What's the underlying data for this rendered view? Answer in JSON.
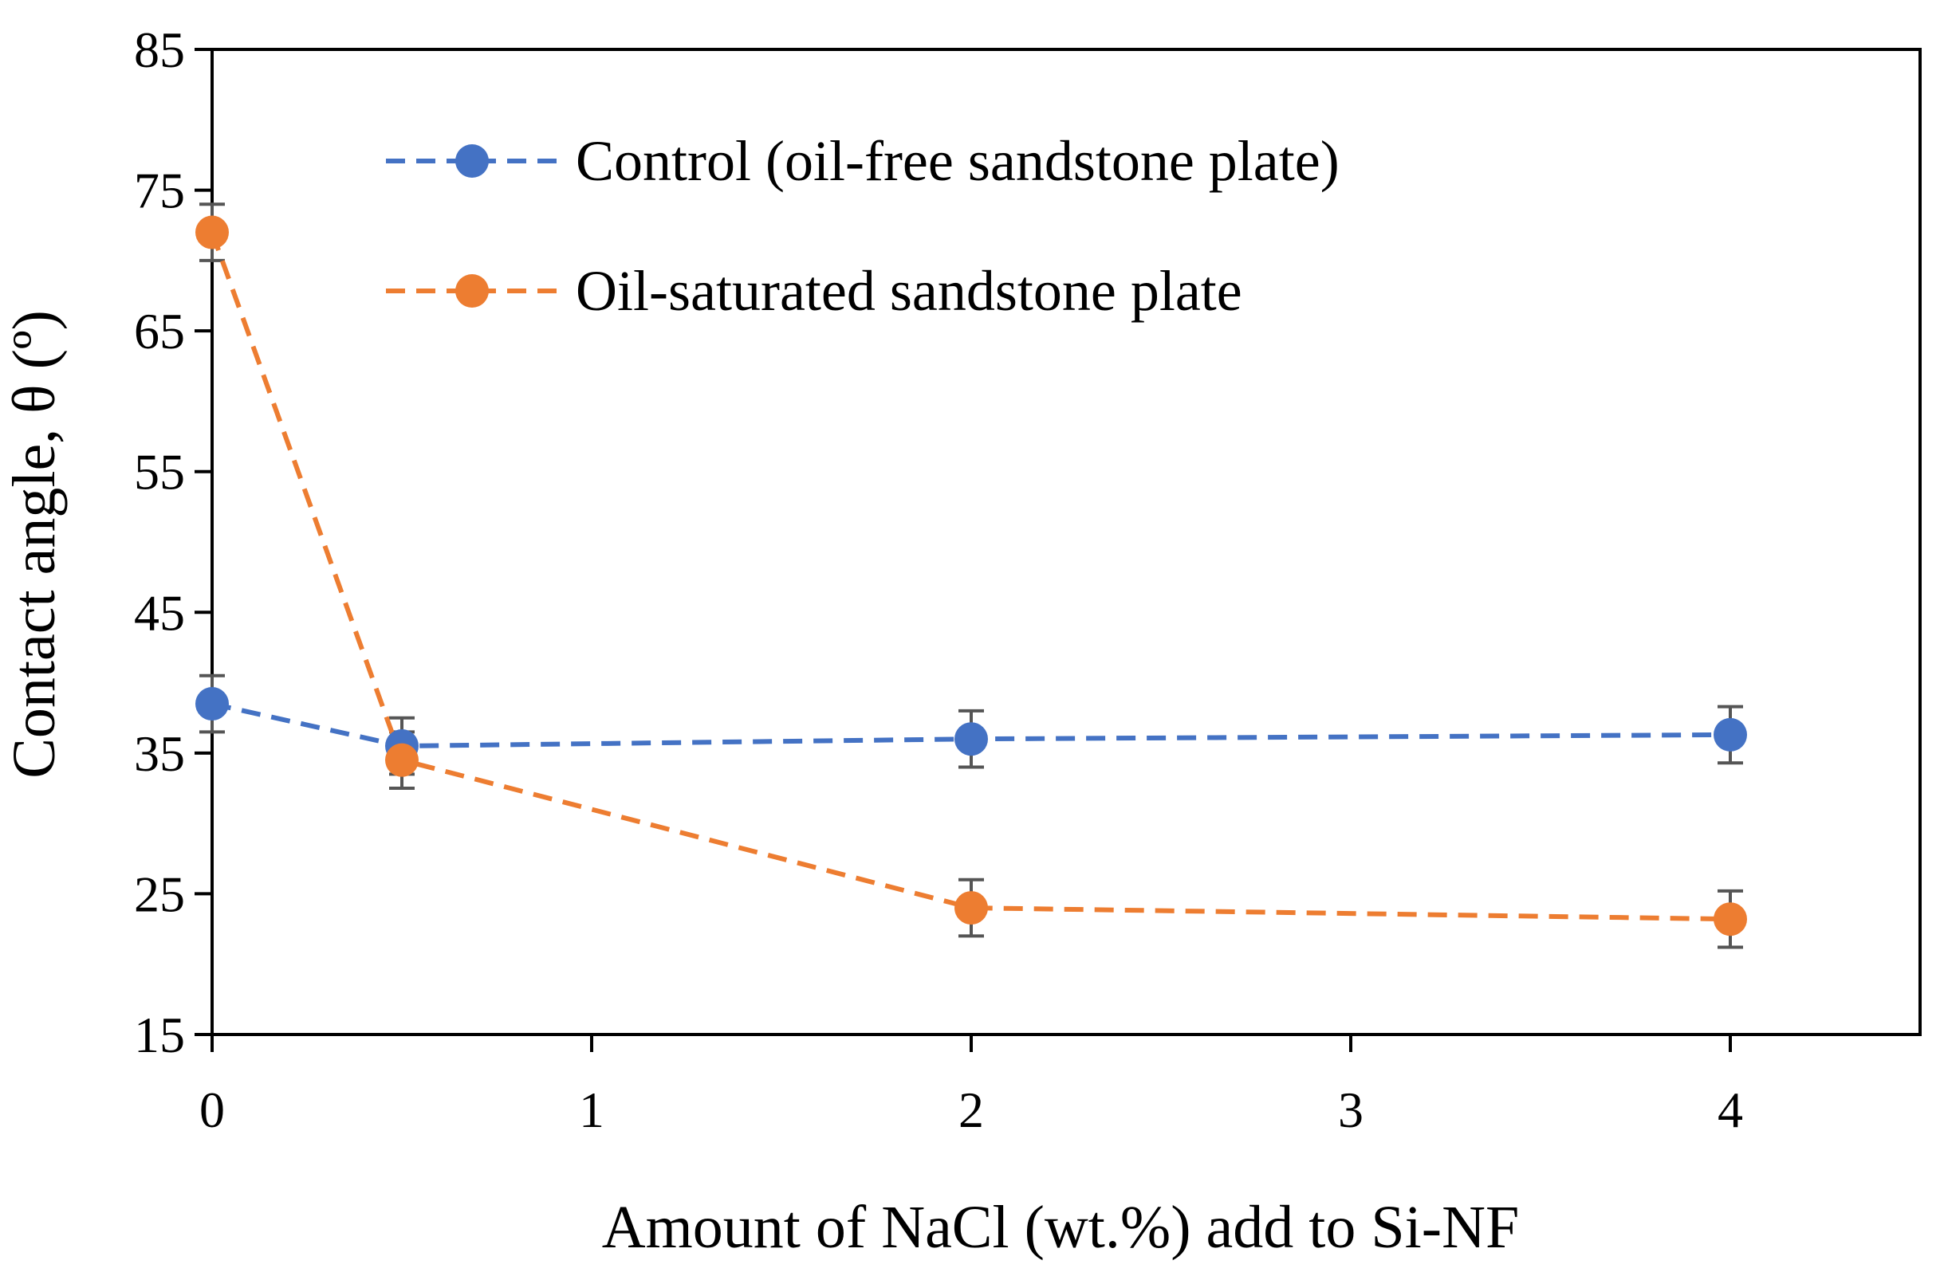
{
  "chart_data": {
    "type": "scatter",
    "mode": "lines+markers",
    "line_style": "dashed",
    "xlabel": "Amount of NaCl (wt.%) add to Si-NF",
    "ylabel": "Contact angle, θ (º)",
    "xlim": [
      0,
      4.5
    ],
    "ylim": [
      15,
      85
    ],
    "xticks": [
      0,
      1,
      2,
      3,
      4
    ],
    "yticks": [
      15,
      25,
      35,
      45,
      55,
      65,
      75,
      85
    ],
    "grid": false,
    "legend_position": "top-left",
    "series": [
      {
        "name": "Control (oil-free sandstone plate)",
        "color": "#4472C4",
        "x": [
          0,
          0.5,
          2,
          4
        ],
        "y": [
          38.5,
          35.5,
          36.0,
          36.3
        ],
        "error": [
          2.0,
          2.0,
          2.0,
          2.0
        ]
      },
      {
        "name": "Oil-saturated sandstone plate",
        "color": "#ED7D31",
        "x": [
          0,
          0.5,
          2,
          4
        ],
        "y": [
          72.0,
          34.5,
          24.0,
          23.2
        ],
        "error": [
          2.0,
          2.0,
          2.0,
          2.0
        ]
      }
    ]
  }
}
